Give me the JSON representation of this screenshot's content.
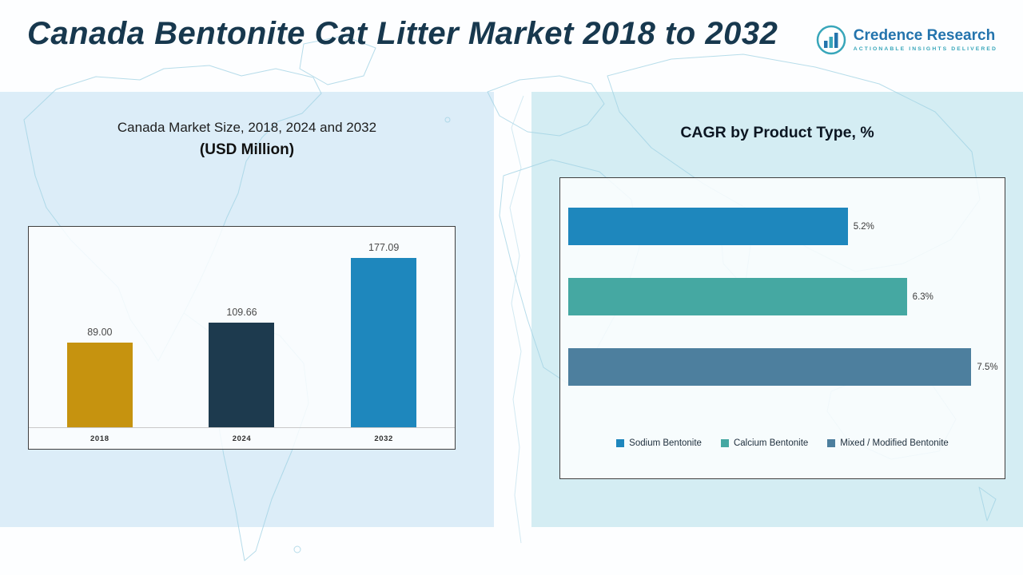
{
  "header": {
    "title": "Canada Bentonite Cat Litter Market 2018 to 2032",
    "brand": {
      "name": "Credence Research",
      "tagline": "Actionable Insights Delivered",
      "name_color": "#2474ad",
      "accent_color": "#38a6ba"
    }
  },
  "chart_data": [
    {
      "type": "bar",
      "title": "Canada Market Size, 2018, 2024 and 2032",
      "subtitle": "(USD Million)",
      "categories": [
        "2018",
        "2024",
        "2032"
      ],
      "values": [
        89.0,
        109.66,
        177.09
      ],
      "value_labels": [
        "89.00",
        "109.66",
        "177.09"
      ],
      "bar_colors": [
        "#c6930f",
        "#1d3a4e",
        "#1e87bd"
      ],
      "ylim": [
        0,
        200
      ],
      "grid": false,
      "legend_position": "none"
    },
    {
      "type": "bar-horizontal",
      "title": "CAGR by Product Type, %",
      "categories": [
        "Sodium Bentonite",
        "Calcium Bentonite",
        "Mixed / Modified Bentonite"
      ],
      "values": [
        5.2,
        6.3,
        7.5
      ],
      "value_labels": [
        "5.2%",
        "6.3%",
        "7.5%"
      ],
      "bar_colors": [
        "#1e87bd",
        "#45a8a2",
        "#4d7f9e"
      ],
      "legend": [
        "Sodium Bentonite",
        "Calcium Bentonite",
        "Mixed / Modified Bentonite"
      ],
      "legend_colors": [
        "#1e87bd",
        "#45a8a2",
        "#4d7f9e"
      ],
      "xlim": [
        0,
        8
      ],
      "grid": false,
      "legend_position": "bottom"
    }
  ]
}
